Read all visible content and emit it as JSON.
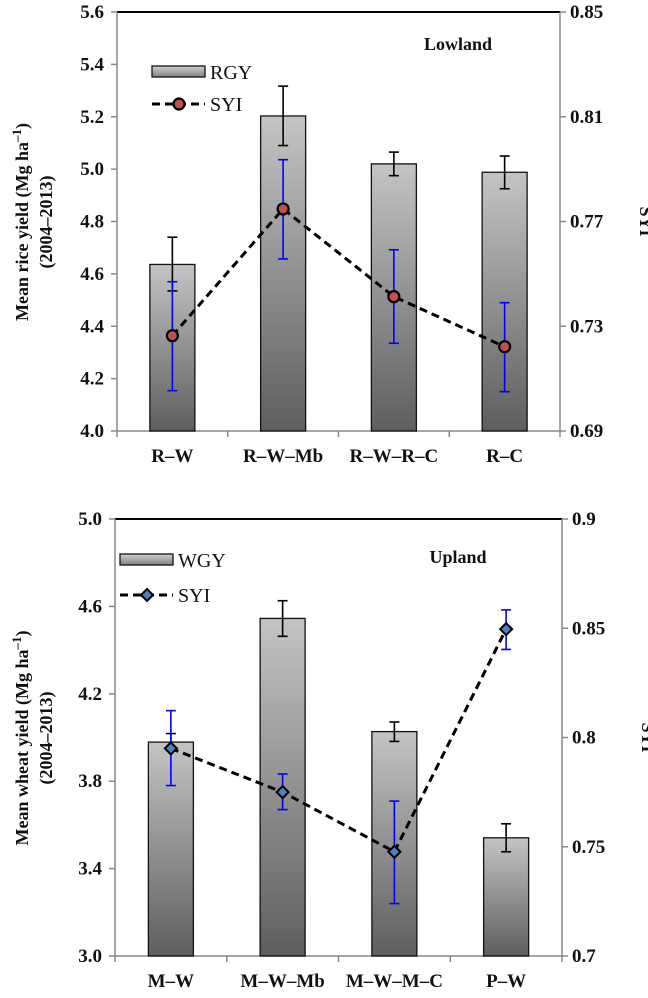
{
  "chart_data": [
    {
      "type": "bar",
      "annotation": "Lowland",
      "categories": [
        "R–W",
        "R–W–Mb",
        "R–W–R–C",
        "R–C"
      ],
      "ylabel": [
        "Mean rice yield (Mg ha",
        "–1",
        ")",
        "(2004–2013)"
      ],
      "y2label": "SYI",
      "ylim": [
        4.0,
        5.6
      ],
      "yticks": [
        "4.0",
        "4.2",
        "4.4",
        "4.6",
        "4.8",
        "5.0",
        "5.2",
        "5.4",
        "5.6"
      ],
      "y2lim": [
        0.69,
        0.85
      ],
      "y2ticks": [
        "0.69",
        "0.73",
        "0.77",
        "0.81",
        "0.85"
      ],
      "grid": false,
      "legend_placement": "top-left",
      "series": [
        {
          "name": "RGY",
          "kind": "bar",
          "axis": "left",
          "values": [
            4.636,
            5.203,
            5.02,
            4.988
          ],
          "err_low": [
            4.535,
            5.09,
            4.975,
            4.925
          ],
          "err_high": [
            4.74,
            5.317,
            5.065,
            5.05
          ],
          "error_color": "#000000"
        },
        {
          "name": "SYI",
          "kind": "line",
          "axis": "right",
          "marker": "circle",
          "marker_color": "#c0504d",
          "values": [
            0.7264,
            0.7748,
            0.7413,
            0.7222
          ],
          "err_low": [
            0.7054,
            0.7557,
            0.7235,
            0.705
          ],
          "err_high": [
            0.747,
            0.7936,
            0.7592,
            0.739
          ],
          "error_color": "#0000ff"
        }
      ]
    },
    {
      "type": "bar",
      "annotation": "Upland",
      "categories": [
        "M–W",
        "M–W–Mb",
        "M–W–M–C",
        "P–W"
      ],
      "ylabel": [
        "Mean wheat yield (Mg ha",
        "–1",
        ")",
        "(2004–2013)"
      ],
      "y2label": "SYI",
      "ylim": [
        3.0,
        5.0
      ],
      "yticks": [
        "3.0",
        "3.4",
        "3.8",
        "4.2",
        "4.6",
        "5.0"
      ],
      "y2lim": [
        0.7,
        0.9
      ],
      "y2ticks": [
        "0.7",
        "0.75",
        "0.8",
        "0.85",
        "0.9"
      ],
      "grid": false,
      "legend_placement": "top-left",
      "series": [
        {
          "name": "WGY",
          "kind": "bar",
          "axis": "left",
          "values": [
            3.979,
            4.545,
            4.027,
            3.541
          ],
          "err_low": [
            3.94,
            4.463,
            3.982,
            3.477
          ],
          "err_high": [
            4.018,
            4.626,
            4.071,
            3.605
          ],
          "error_color": "#000000"
        },
        {
          "name": "SYI",
          "kind": "line",
          "axis": "right",
          "marker": "diamond",
          "marker_color": "#4f81bd",
          "values": [
            0.795,
            0.775,
            0.7477,
            0.8496
          ],
          "err_low": [
            0.778,
            0.767,
            0.724,
            0.8403
          ],
          "err_high": [
            0.8123,
            0.7833,
            0.7709,
            0.8584
          ],
          "error_color": "#0000ff"
        }
      ]
    }
  ]
}
